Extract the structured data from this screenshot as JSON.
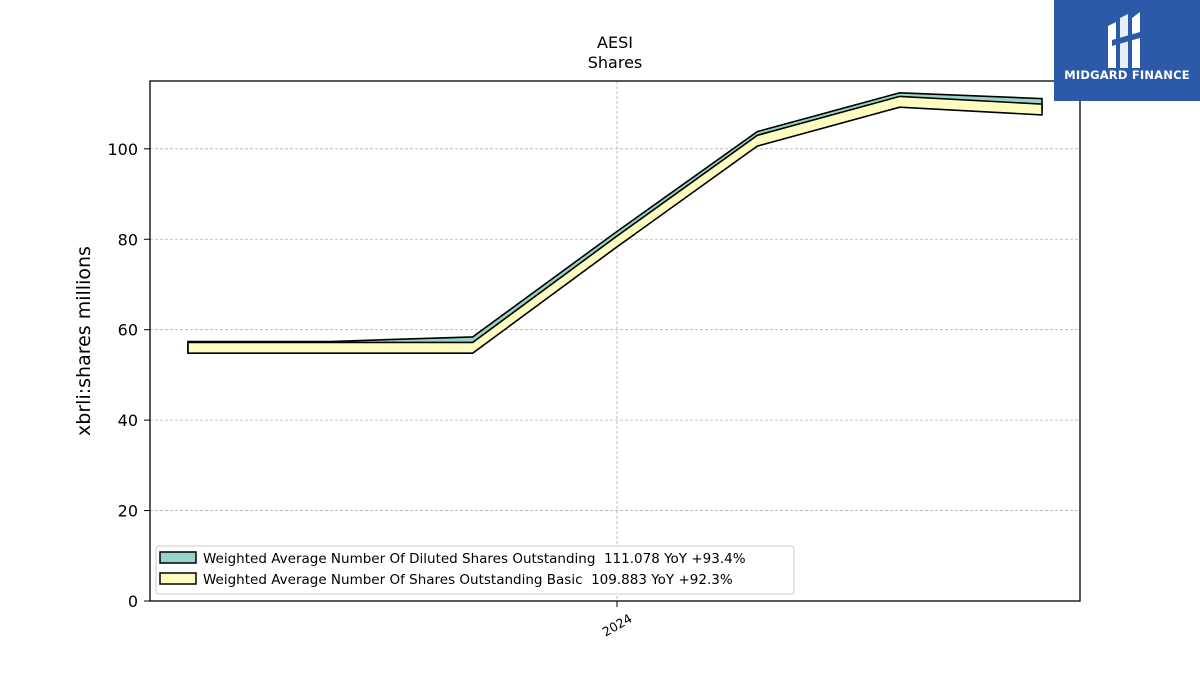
{
  "brand": {
    "name": "MIDGARD FINANCE",
    "bg_color": "#2d5aa8"
  },
  "chart_data": {
    "type": "area",
    "title": "AESI",
    "subtitle": "Shares",
    "xlabel": "",
    "ylabel": "xbrli:shares millions",
    "x_tick_labels": [
      "2024"
    ],
    "y_ticks": [
      0,
      20,
      40,
      60,
      80,
      100
    ],
    "ylim": [
      0,
      115
    ],
    "grid": true,
    "legend_position": "lower-left",
    "points": 7,
    "series": [
      {
        "name": "Weighted Average Number Of Diluted Shares Outstanding",
        "legend_label": "Weighted Average Number Of Diluted Shares Outstanding  111.078 YoY +93.4%",
        "color": "#96d3c8",
        "values": [
          57.4,
          57.4,
          58.4,
          81.4,
          103.8,
          112.4,
          111.1
        ]
      },
      {
        "name": "Weighted Average Number Of Shares Outstanding Basic",
        "legend_label": "Weighted Average Number Of Shares Outstanding Basic  109.883 YoY +92.3%",
        "color": "#fefdbf",
        "values": [
          57.2,
          57.2,
          57.2,
          80.4,
          103.0,
          111.6,
          109.9
        ]
      }
    ]
  }
}
